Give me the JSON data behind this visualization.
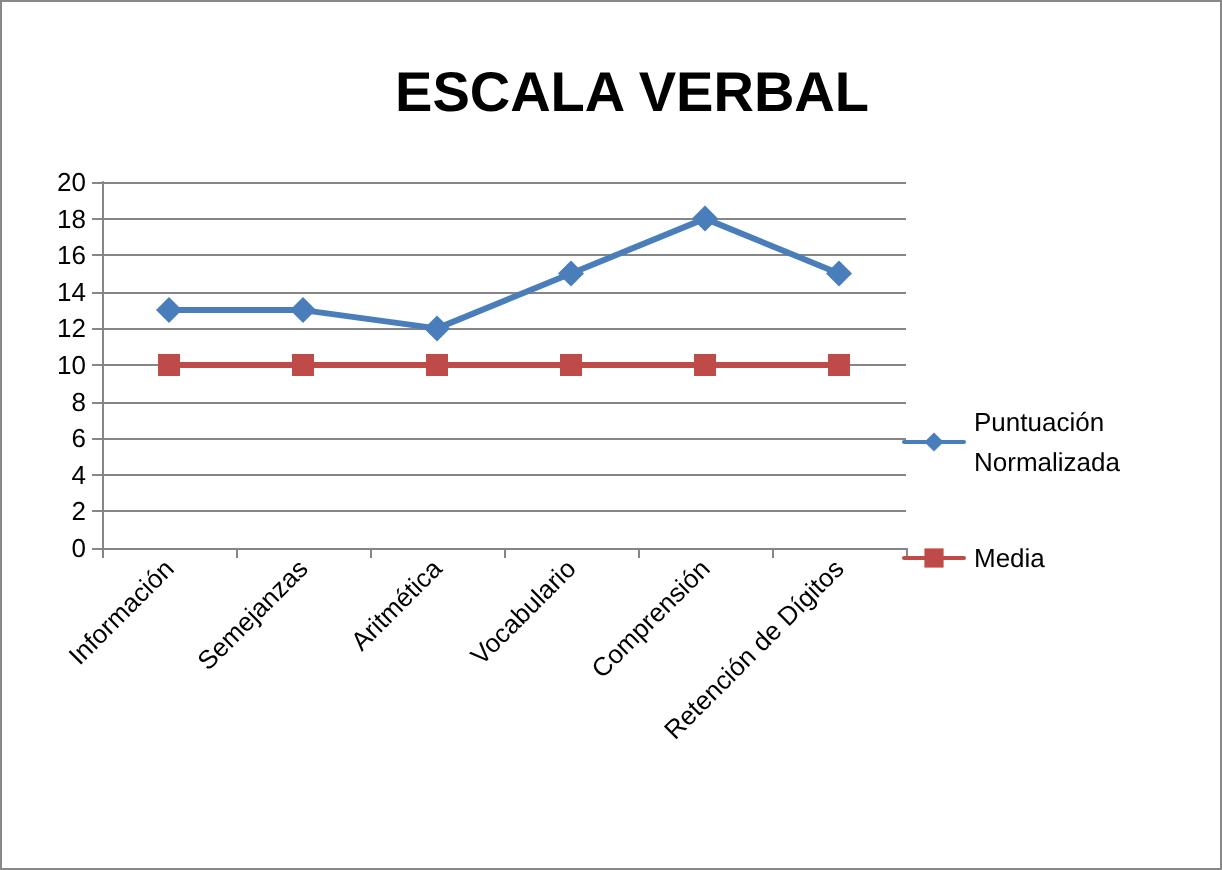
{
  "chart_data": {
    "type": "line",
    "title": "ESCALA VERBAL",
    "categories": [
      "Información",
      "Semejanzas",
      "Aritmética",
      "Vocabulario",
      "Comprensión",
      "Retención de Dígitos"
    ],
    "series": [
      {
        "name": "Puntuación Normalizada",
        "color": "#4a7ebb",
        "marker": "diamond",
        "values": [
          13,
          13,
          12,
          15,
          18,
          15
        ]
      },
      {
        "name": "Media",
        "color": "#be4b48",
        "marker": "square",
        "values": [
          10,
          10,
          10,
          10,
          10,
          10
        ]
      }
    ],
    "ylim": [
      0,
      20
    ],
    "yticks": [
      0,
      2,
      4,
      6,
      8,
      10,
      12,
      14,
      16,
      18,
      20
    ],
    "grid": "y",
    "legend": "right",
    "line_style": "solid"
  }
}
